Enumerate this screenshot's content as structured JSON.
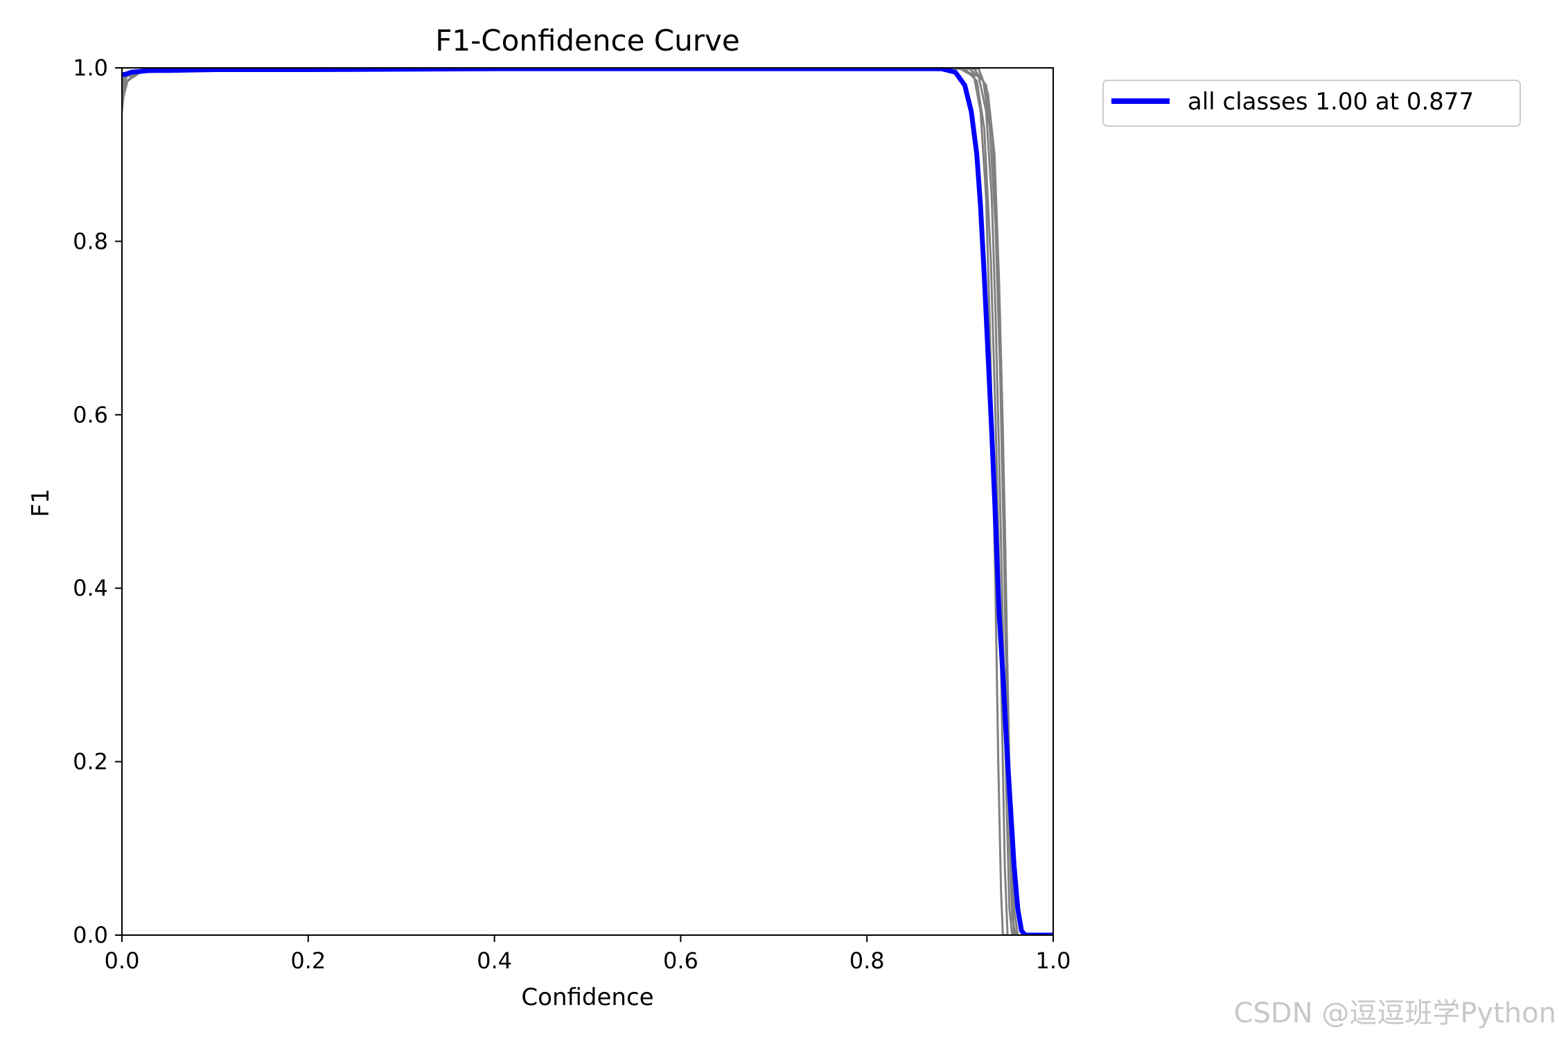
{
  "chart_data": {
    "type": "line",
    "title": "F1-Confidence Curve",
    "xlabel": "Confidence",
    "ylabel": "F1",
    "xlim": [
      0.0,
      1.0
    ],
    "ylim": [
      0.0,
      1.0
    ],
    "xticks": [
      "0.0",
      "0.2",
      "0.4",
      "0.6",
      "0.8",
      "1.0"
    ],
    "yticks": [
      "0.0",
      "0.2",
      "0.4",
      "0.6",
      "0.8",
      "1.0"
    ],
    "grid": false,
    "legend_position": "outside-top-right",
    "colors": {
      "class_curves": "#808080",
      "all_classes": "#0000ff"
    },
    "series": [
      {
        "name": "all classes 1.00 at 0.877",
        "color": "#0000ff",
        "x": [
          0.0,
          0.005,
          0.01,
          0.02,
          0.03,
          0.05,
          0.1,
          0.2,
          0.4,
          0.6,
          0.8,
          0.88,
          0.895,
          0.905,
          0.912,
          0.918,
          0.922,
          0.926,
          0.93,
          0.934,
          0.938,
          0.942,
          0.946,
          0.95,
          0.954,
          0.958,
          0.962,
          0.966,
          0.97,
          0.975,
          1.0
        ],
        "y": [
          0.992,
          0.993,
          0.995,
          0.996,
          0.997,
          0.997,
          0.998,
          0.998,
          0.999,
          0.999,
          0.999,
          0.999,
          0.995,
          0.98,
          0.95,
          0.9,
          0.84,
          0.76,
          0.67,
          0.58,
          0.48,
          0.37,
          0.3,
          0.22,
          0.15,
          0.08,
          0.03,
          0.005,
          0.0,
          0.0,
          0.0
        ]
      }
    ],
    "class_curves": [
      {
        "x": [
          0.0,
          0.003,
          0.01,
          0.02,
          0.1,
          0.5,
          0.9,
          0.915,
          0.922,
          0.928,
          0.932,
          0.936,
          0.938,
          0.941,
          0.944,
          0.946,
          0.95
        ],
        "y": [
          0.95,
          0.98,
          0.99,
          0.995,
          0.998,
          0.999,
          0.999,
          0.99,
          0.95,
          0.85,
          0.7,
          0.5,
          0.4,
          0.2,
          0.05,
          0.0,
          0.0
        ]
      },
      {
        "x": [
          0.0,
          0.005,
          0.02,
          0.1,
          0.5,
          0.9,
          0.92,
          0.928,
          0.934,
          0.938,
          0.942,
          0.946,
          0.95,
          0.953,
          0.956
        ],
        "y": [
          0.97,
          0.985,
          0.995,
          0.998,
          0.999,
          0.999,
          0.99,
          0.95,
          0.85,
          0.72,
          0.55,
          0.35,
          0.15,
          0.03,
          0.0
        ]
      },
      {
        "x": [
          0.0,
          0.004,
          0.02,
          0.1,
          0.5,
          0.91,
          0.925,
          0.932,
          0.938,
          0.943,
          0.947,
          0.95,
          0.953,
          0.956,
          0.96
        ],
        "y": [
          0.98,
          0.99,
          0.996,
          0.999,
          0.999,
          0.999,
          0.985,
          0.93,
          0.82,
          0.65,
          0.45,
          0.28,
          0.12,
          0.02,
          0.0
        ]
      },
      {
        "x": [
          0.0,
          0.006,
          0.02,
          0.1,
          0.5,
          0.915,
          0.928,
          0.935,
          0.94,
          0.944,
          0.948,
          0.951,
          0.954,
          0.958,
          0.962
        ],
        "y": [
          0.96,
          0.985,
          0.995,
          0.998,
          0.999,
          0.999,
          0.98,
          0.92,
          0.8,
          0.66,
          0.48,
          0.3,
          0.14,
          0.03,
          0.0
        ]
      },
      {
        "x": [
          0.0,
          0.004,
          0.02,
          0.1,
          0.5,
          0.905,
          0.918,
          0.926,
          0.933,
          0.938,
          0.942,
          0.945,
          0.948,
          0.951
        ],
        "y": [
          0.985,
          0.992,
          0.996,
          0.999,
          0.999,
          0.999,
          0.985,
          0.93,
          0.78,
          0.6,
          0.42,
          0.25,
          0.08,
          0.0
        ]
      },
      {
        "x": [
          0.0,
          0.005,
          0.02,
          0.1,
          0.5,
          0.92,
          0.93,
          0.937,
          0.942,
          0.946,
          0.949,
          0.952,
          0.955,
          0.958
        ],
        "y": [
          0.975,
          0.99,
          0.996,
          0.999,
          0.999,
          0.999,
          0.97,
          0.9,
          0.75,
          0.58,
          0.4,
          0.22,
          0.07,
          0.0
        ]
      }
    ]
  },
  "watermark": "CSDN @逗逗班学Python"
}
